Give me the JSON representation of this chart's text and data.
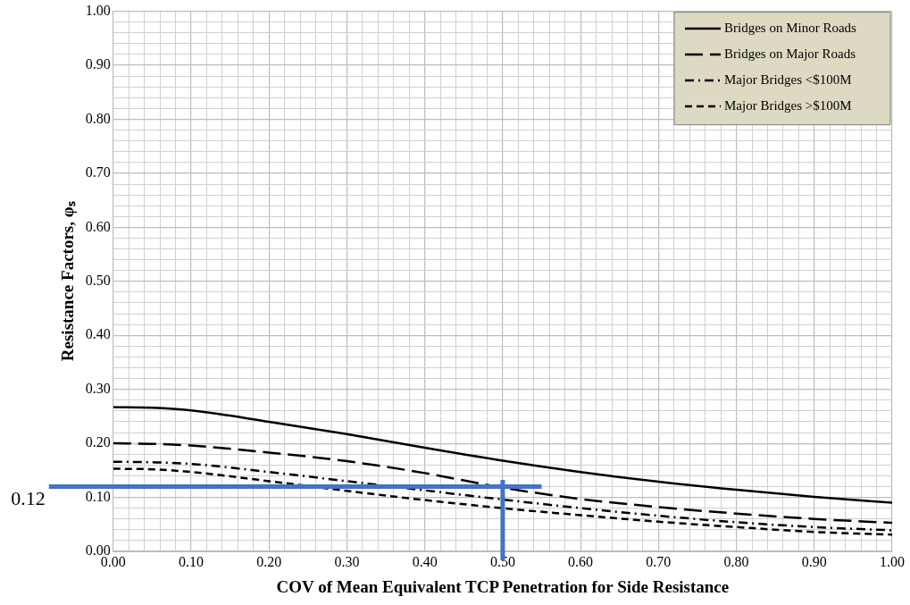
{
  "chart_data": {
    "type": "line",
    "xlabel": "COV of Mean Equivalent TCP Penetration for Side Resistance",
    "ylabel": "Resistance Factors, φₛ",
    "x": [
      0,
      0.05,
      0.1,
      0.2,
      0.3,
      0.4,
      0.5,
      0.6,
      0.7,
      0.8,
      0.9,
      1.0
    ],
    "series": [
      {
        "name": "Bridges on Minor Roads",
        "color": "#000000",
        "line_style": "solid",
        "values": [
          0.267,
          0.266,
          0.261,
          0.24,
          0.217,
          0.192,
          0.168,
          0.147,
          0.129,
          0.114,
          0.101,
          0.09
        ]
      },
      {
        "name": "Bridges on Major Roads",
        "color": "#000000",
        "line_style": "longdash",
        "values": [
          0.2,
          0.199,
          0.196,
          0.183,
          0.167,
          0.145,
          0.118,
          0.097,
          0.082,
          0.07,
          0.06,
          0.053
        ]
      },
      {
        "name": "Major Bridges <$100M",
        "color": "#000000",
        "line_style": "dashdot",
        "values": [
          0.166,
          0.165,
          0.162,
          0.147,
          0.13,
          0.113,
          0.096,
          0.08,
          0.066,
          0.054,
          0.045,
          0.039
        ]
      },
      {
        "name": "Major Bridges >$100M",
        "color": "#000000",
        "line_style": "dashed",
        "values": [
          0.153,
          0.152,
          0.147,
          0.13,
          0.112,
          0.095,
          0.08,
          0.067,
          0.055,
          0.045,
          0.036,
          0.031
        ]
      }
    ],
    "xlim": [
      0,
      1
    ],
    "ylim": [
      0,
      1
    ],
    "xticks": [
      {
        "value": 0,
        "label": "0.00"
      },
      {
        "value": 0.1,
        "label": "0.10"
      },
      {
        "value": 0.2,
        "label": "0.20"
      },
      {
        "value": 0.3,
        "label": "0.30"
      },
      {
        "value": 0.4,
        "label": "0.40"
      },
      {
        "value": 0.5,
        "label": "0.50"
      },
      {
        "value": 0.6,
        "label": "0.60"
      },
      {
        "value": 0.7,
        "label": "0.70"
      },
      {
        "value": 0.8,
        "label": "0.80"
      },
      {
        "value": 0.9,
        "label": "0.90"
      },
      {
        "value": 1,
        "label": "1.00"
      }
    ],
    "yticks": [
      {
        "value": 0,
        "label": "0.00"
      },
      {
        "value": 0.1,
        "label": "0.10"
      },
      {
        "value": 0.2,
        "label": "0.20"
      },
      {
        "value": 0.3,
        "label": "0.30"
      },
      {
        "value": 0.4,
        "label": "0.40"
      },
      {
        "value": 0.5,
        "label": "0.50"
      },
      {
        "value": 0.6,
        "label": "0.60"
      },
      {
        "value": 0.7,
        "label": "0.70"
      },
      {
        "value": 0.8,
        "label": "0.80"
      },
      {
        "value": 0.9,
        "label": "0.90"
      },
      {
        "value": 1,
        "label": "1.00"
      }
    ],
    "ref_lines": [
      {
        "axis": "y",
        "value": 0.12,
        "label": "0.12",
        "color": "#4472c4"
      },
      {
        "axis": "x",
        "value": 0.5,
        "color": "#4472c4"
      }
    ],
    "grid": true,
    "legend": "top right",
    "marker": "none"
  }
}
